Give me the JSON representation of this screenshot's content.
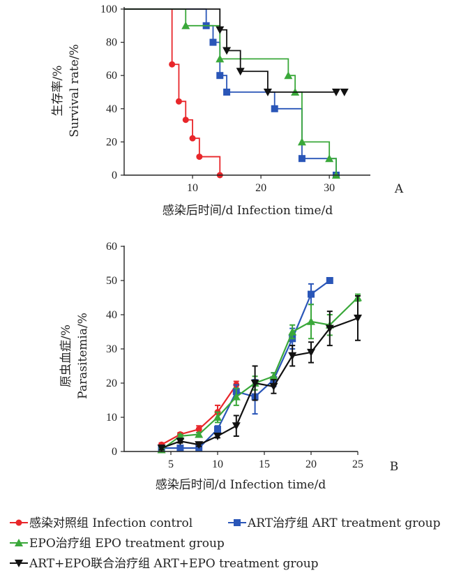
{
  "chart_data": [
    {
      "type": "line",
      "subtype": "step",
      "panel_label": "A",
      "xlabel": "感染后时间/d Infection time/d",
      "ylabel_cn": "生存率/%",
      "ylabel_en": "Survival rate/%",
      "xlim": [
        0,
        36
      ],
      "ylim": [
        0,
        100
      ],
      "xticks": [
        10,
        20,
        30
      ],
      "yticks": [
        0,
        20,
        40,
        60,
        80,
        100
      ],
      "series": [
        {
          "key": "control",
          "name": "感染对照组 Infection control",
          "color": "#e8262a",
          "marker": "circle",
          "steps": [
            [
              0,
              100
            ],
            [
              7,
              66.7
            ],
            [
              8,
              44.4
            ],
            [
              9,
              33.3
            ],
            [
              10,
              22.2
            ],
            [
              11,
              11.1
            ],
            [
              14,
              0
            ]
          ]
        },
        {
          "key": "art",
          "name": "ART治疗组 ART treatment group",
          "color": "#2a56b8",
          "marker": "square",
          "steps": [
            [
              0,
              100
            ],
            [
              12,
              90
            ],
            [
              13,
              80
            ],
            [
              14,
              60
            ],
            [
              15,
              50
            ],
            [
              22,
              40
            ],
            [
              26,
              10
            ],
            [
              31,
              0
            ]
          ]
        },
        {
          "key": "epo",
          "name": "EPO治疗组 EPO treatment group",
          "color": "#3aa83a",
          "marker": "triangle",
          "steps": [
            [
              0,
              100
            ],
            [
              9,
              90
            ],
            [
              14,
              70
            ],
            [
              24,
              60
            ],
            [
              25,
              50
            ],
            [
              26,
              20
            ],
            [
              30,
              10
            ],
            [
              31,
              0
            ]
          ]
        },
        {
          "key": "combo",
          "name": "ART+EPO联合治疗组 ART+EPO treatment group",
          "color": "#111111",
          "marker": "triangle-down",
          "steps": [
            [
              0,
              100
            ],
            [
              14,
              87.5
            ],
            [
              15,
              75
            ],
            [
              17,
              62.5
            ],
            [
              21,
              50
            ],
            [
              31,
              50
            ]
          ]
        }
      ]
    },
    {
      "type": "line",
      "panel_label": "B",
      "xlabel": "感染后时间/d Infection time/d",
      "ylabel_cn": "原虫血症/%",
      "ylabel_en": "Parasitemia/%",
      "xlim": [
        0,
        25
      ],
      "ylim": [
        0,
        60
      ],
      "xticks": [
        5,
        10,
        15,
        20,
        25
      ],
      "yticks": [
        0,
        10,
        20,
        30,
        40,
        50,
        60
      ],
      "x": [
        4,
        6,
        8,
        10,
        12,
        14,
        16,
        18,
        20,
        22,
        25
      ],
      "series": [
        {
          "key": "control",
          "name": "感染对照组 Infection control",
          "color": "#e8262a",
          "marker": "circle",
          "values": [
            2,
            5,
            6.5,
            11.5,
            19.5,
            null,
            null,
            null,
            null,
            null,
            null
          ],
          "errors": [
            0.5,
            0.5,
            1,
            2,
            1,
            null,
            null,
            null,
            null,
            null,
            null
          ]
        },
        {
          "key": "art",
          "name": "ART治疗组 ART treatment group",
          "color": "#2a56b8",
          "marker": "square",
          "values": [
            1,
            1,
            1,
            6.5,
            17.5,
            16,
            21,
            33,
            46,
            50,
            null
          ],
          "errors": [
            0.5,
            0.5,
            0.5,
            1,
            2,
            5,
            2,
            3,
            3,
            0,
            null
          ]
        },
        {
          "key": "epo",
          "name": "EPO治疗组 EPO treatment group",
          "color": "#3aa83a",
          "marker": "triangle",
          "values": [
            0.5,
            4.5,
            5,
            10,
            16,
            20,
            22,
            35,
            38,
            37,
            45
          ],
          "errors": [
            0.5,
            0.5,
            0.5,
            1.5,
            2.5,
            2,
            1,
            2,
            5,
            3,
            1
          ]
        },
        {
          "key": "combo",
          "name": "ART+EPO联合治疗组 ART+EPO treatment group",
          "color": "#111111",
          "marker": "triangle-down",
          "values": [
            1,
            3,
            2,
            4.5,
            7.5,
            20,
            19,
            28,
            29,
            36,
            39
          ],
          "errors": [
            0.5,
            0.5,
            0.5,
            0.5,
            3,
            5,
            2,
            3,
            3,
            5,
            6.5
          ]
        }
      ]
    }
  ],
  "legend": [
    {
      "key": "control",
      "label": "感染对照组 Infection control",
      "color": "#e8262a",
      "marker": "circle"
    },
    {
      "key": "art",
      "label": "ART治疗组 ART treatment group",
      "color": "#2a56b8",
      "marker": "square"
    },
    {
      "key": "epo",
      "label": "EPO治疗组 EPO treatment group",
      "color": "#3aa83a",
      "marker": "triangle"
    },
    {
      "key": "combo",
      "label": "ART+EPO联合治疗组 ART+EPO treatment group",
      "color": "#111111",
      "marker": "triangle-down"
    }
  ]
}
